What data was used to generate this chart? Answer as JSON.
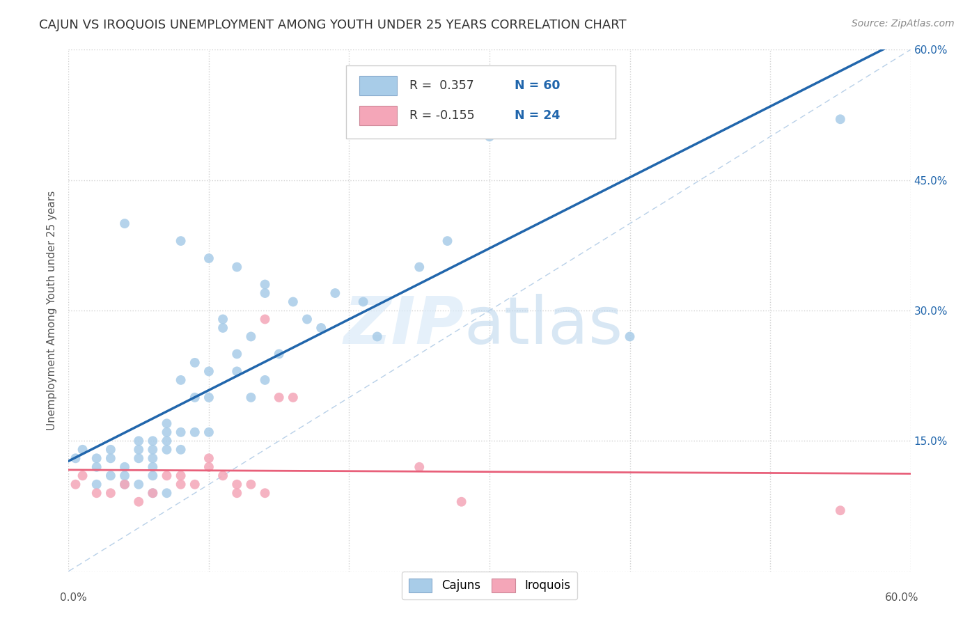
{
  "title": "CAJUN VS IROQUOIS UNEMPLOYMENT AMONG YOUTH UNDER 25 YEARS CORRELATION CHART",
  "source": "Source: ZipAtlas.com",
  "ylabel": "Unemployment Among Youth under 25 years",
  "xlim": [
    0.0,
    0.6
  ],
  "ylim": [
    0.0,
    0.6
  ],
  "xtick_vals": [
    0.0,
    0.1,
    0.2,
    0.3,
    0.4,
    0.5,
    0.6
  ],
  "ytick_vals": [
    0.0,
    0.15,
    0.3,
    0.45,
    0.6
  ],
  "cajun_color": "#a8cce8",
  "iroquois_color": "#f4a6b8",
  "cajun_line_color": "#2166ac",
  "iroquois_line_color": "#e8607a",
  "diag_color": "#b8d0e8",
  "R_cajun": 0.357,
  "N_cajun": 60,
  "R_iroquois": -0.155,
  "N_iroquois": 24,
  "cajun_x": [
    0.005,
    0.01,
    0.02,
    0.02,
    0.02,
    0.03,
    0.03,
    0.03,
    0.04,
    0.04,
    0.04,
    0.05,
    0.05,
    0.05,
    0.05,
    0.06,
    0.06,
    0.06,
    0.06,
    0.06,
    0.06,
    0.07,
    0.07,
    0.07,
    0.07,
    0.07,
    0.08,
    0.08,
    0.08,
    0.09,
    0.09,
    0.09,
    0.1,
    0.1,
    0.1,
    0.11,
    0.11,
    0.12,
    0.12,
    0.13,
    0.13,
    0.14,
    0.14,
    0.15,
    0.16,
    0.17,
    0.18,
    0.19,
    0.21,
    0.22,
    0.25,
    0.27,
    0.3,
    0.04,
    0.08,
    0.1,
    0.12,
    0.14,
    0.4,
    0.55
  ],
  "cajun_y": [
    0.13,
    0.14,
    0.13,
    0.12,
    0.1,
    0.14,
    0.13,
    0.11,
    0.12,
    0.11,
    0.1,
    0.15,
    0.14,
    0.13,
    0.1,
    0.15,
    0.14,
    0.13,
    0.12,
    0.11,
    0.09,
    0.17,
    0.16,
    0.15,
    0.14,
    0.09,
    0.22,
    0.16,
    0.14,
    0.24,
    0.2,
    0.16,
    0.23,
    0.2,
    0.16,
    0.29,
    0.28,
    0.25,
    0.23,
    0.27,
    0.2,
    0.32,
    0.22,
    0.25,
    0.31,
    0.29,
    0.28,
    0.32,
    0.31,
    0.27,
    0.35,
    0.38,
    0.5,
    0.4,
    0.38,
    0.36,
    0.35,
    0.33,
    0.27,
    0.52
  ],
  "iroquois_x": [
    0.005,
    0.01,
    0.02,
    0.03,
    0.04,
    0.05,
    0.06,
    0.07,
    0.08,
    0.08,
    0.09,
    0.1,
    0.1,
    0.11,
    0.12,
    0.12,
    0.13,
    0.14,
    0.15,
    0.16,
    0.25,
    0.28,
    0.55,
    0.14
  ],
  "iroquois_y": [
    0.1,
    0.11,
    0.09,
    0.09,
    0.1,
    0.08,
    0.09,
    0.11,
    0.11,
    0.1,
    0.1,
    0.13,
    0.12,
    0.11,
    0.1,
    0.09,
    0.1,
    0.09,
    0.2,
    0.2,
    0.12,
    0.08,
    0.07,
    0.29
  ],
  "background_color": "#ffffff",
  "grid_color": "#d0d0d0"
}
